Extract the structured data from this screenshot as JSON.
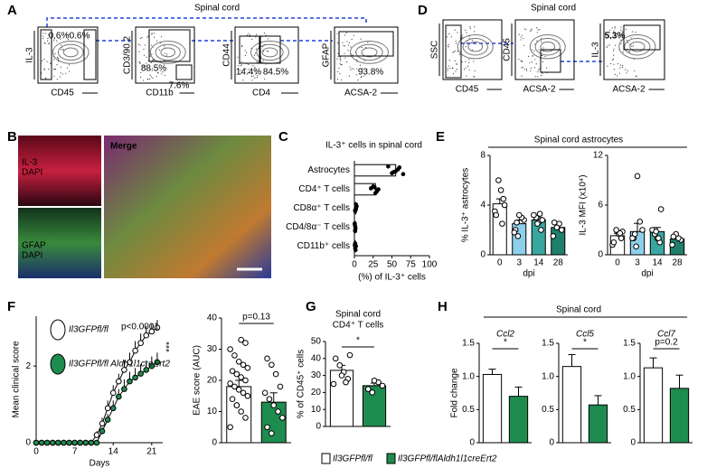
{
  "figure": {
    "panel_labels": [
      "A",
      "B",
      "C",
      "D",
      "E",
      "F",
      "G",
      "H"
    ],
    "A": {
      "title": "Spinal cord",
      "plots": [
        {
          "y_label": "IL-3",
          "x_label": "CD45",
          "gates": [
            "0.6%",
            "0.6%"
          ]
        },
        {
          "y_label": "CD3/90.2",
          "x_label": "CD11b",
          "gates": [
            "88.5%",
            "7.6%"
          ]
        },
        {
          "y_label": "CD44",
          "x_label": "CD4",
          "gates": [
            "14.4%",
            "84.5%"
          ]
        },
        {
          "y_label": "GFAP",
          "x_label": "ACSA-2",
          "gates": [
            "93.8%"
          ]
        }
      ]
    },
    "D": {
      "title": "Spinal cord",
      "plots": [
        {
          "y_label": "SSC",
          "x_label": "CD45",
          "gates": []
        },
        {
          "y_label": "CD45",
          "x_label": "ACSA-2",
          "gates": []
        },
        {
          "y_label": "IL-3",
          "x_label": "ACSA-2",
          "gates": [
            "5.3%"
          ]
        }
      ]
    },
    "B": {
      "top_labels": [
        "IL-3",
        "DAPI"
      ],
      "bottom_labels": [
        "GFAP",
        "DAPI"
      ],
      "merge_label": "Merge"
    },
    "E_title": "Spinal cord astrocytes",
    "H_title": "Spinal cord",
    "legend": [
      "Il3GFPfl/fl",
      "Il3GFPfl/flAldh1l1creErt2"
    ],
    "legend_colors": [
      "#ffffff",
      "#1e8c4e"
    ]
  },
  "chart_data": [
    {
      "type": "hbar",
      "title": "IL-3⁺ cells in spinal cord",
      "x_label": "(%) of IL-3⁺ cells",
      "categories": [
        "Astrocytes",
        "CD4⁺ T cells",
        "CD8α⁺ T cells",
        "CD4/8α⁻ T cells",
        "CD11b⁺ cells"
      ],
      "values": [
        55,
        28,
        2,
        1,
        1
      ],
      "errors": [
        4,
        3,
        1,
        0.5,
        0.5
      ],
      "points": [
        [
          45,
          50,
          55,
          58,
          60,
          65,
          52
        ],
        [
          22,
          25,
          28,
          30,
          32,
          27
        ],
        [
          1,
          2,
          3,
          2,
          1,
          2
        ],
        [
          0.5,
          1,
          1.5,
          1,
          0.5,
          1
        ],
        [
          0.5,
          1,
          1.5,
          1,
          2,
          1
        ]
      ],
      "color": "#ffffff",
      "xlim": [
        0,
        100
      ],
      "xticks": [
        0,
        25,
        50,
        75,
        100
      ]
    },
    {
      "type": "bar",
      "y_label": "% IL-3⁺ astrocytes",
      "x_label": "dpi",
      "categories": [
        "0",
        "3",
        "14",
        "28"
      ],
      "values": [
        4.1,
        2.5,
        2.8,
        2.2
      ],
      "errors": [
        0.4,
        0.3,
        0.2,
        0.2
      ],
      "colors": [
        "#ffffff",
        "#8ed0ea",
        "#3aa6a0",
        "#1f7f6a"
      ],
      "points": [
        [
          3.5,
          4.5,
          5.2,
          6.0,
          3.2,
          4.0,
          2.5
        ],
        [
          1.5,
          2.0,
          2.8,
          3.0,
          3.2,
          2.6,
          1.8
        ],
        [
          2.0,
          2.6,
          3.0,
          3.2,
          2.8,
          3.3,
          2.5
        ],
        [
          1.5,
          2.0,
          2.5,
          2.2,
          2.6
        ]
      ],
      "ylim": [
        0,
        8
      ],
      "yticks": [
        0,
        4,
        8
      ]
    },
    {
      "type": "bar",
      "y_label": "IL-3 MFI (x10⁴)",
      "x_label": "dpi",
      "categories": [
        "0",
        "3",
        "14",
        "28"
      ],
      "values": [
        2.3,
        2.8,
        2.8,
        1.9
      ],
      "errors": [
        0.3,
        1.0,
        0.5,
        0.2
      ],
      "colors": [
        "#ffffff",
        "#8ed0ea",
        "#3aa6a0",
        "#1f7f6a"
      ],
      "points": [
        [
          1.2,
          2.0,
          2.5,
          3.0,
          1.5,
          2.8,
          2.6
        ],
        [
          1.0,
          2.0,
          3.0,
          4.0,
          9.5,
          2.5,
          2.0
        ],
        [
          1.5,
          2.0,
          2.5,
          3.0,
          5.5,
          2.0,
          2.8
        ],
        [
          1.2,
          1.8,
          2.0,
          2.5,
          2.2
        ]
      ],
      "ylim": [
        0,
        12
      ],
      "yticks": [
        0,
        6,
        12
      ]
    },
    {
      "type": "line",
      "y_label": "Mean clinical score",
      "x_label": "Days",
      "annotations": [
        "p<0.0001",
        "***"
      ],
      "x": [
        0,
        1,
        2,
        3,
        4,
        5,
        6,
        7,
        8,
        9,
        10,
        11,
        12,
        13,
        14,
        15,
        16,
        17,
        18,
        19,
        20,
        21,
        22
      ],
      "series": [
        {
          "name": "Il3GFPfl/fl",
          "color": "#ffffff",
          "values": [
            0,
            0,
            0,
            0,
            0,
            0,
            0,
            0,
            0,
            0,
            0,
            0.2,
            0.5,
            0.9,
            1.3,
            1.6,
            1.9,
            2.1,
            2.4,
            2.6,
            2.8,
            2.9,
            3.0
          ],
          "errors": [
            0,
            0,
            0,
            0,
            0,
            0,
            0,
            0,
            0,
            0,
            0,
            0.1,
            0.15,
            0.2,
            0.2,
            0.2,
            0.25,
            0.25,
            0.25,
            0.25,
            0.25,
            0.2,
            0.2
          ]
        },
        {
          "name": "Il3GFPfl/fl Aldh1l1creErt2",
          "color": "#1e8c4e",
          "values": [
            0,
            0,
            0,
            0,
            0,
            0,
            0,
            0,
            0,
            0,
            0,
            0,
            0.3,
            0.6,
            0.9,
            1.2,
            1.4,
            1.6,
            1.7,
            1.8,
            1.9,
            2.0,
            2.1
          ],
          "errors": [
            0,
            0,
            0,
            0,
            0,
            0,
            0,
            0,
            0,
            0,
            0,
            0,
            0.1,
            0.15,
            0.2,
            0.2,
            0.25,
            0.25,
            0.25,
            0.25,
            0.25,
            0.25,
            0.25
          ]
        }
      ],
      "xlim": [
        0,
        23
      ],
      "xticks": [
        0,
        7,
        14,
        21
      ],
      "ylim": [
        0,
        3.3
      ],
      "yticks": [
        0,
        2
      ]
    },
    {
      "type": "bar",
      "y_label": "EAE score (AUC)",
      "annotations": [
        "p=0.13"
      ],
      "categories": [
        null,
        null
      ],
      "values": [
        18,
        13
      ],
      "errors": [
        2,
        3
      ],
      "colors": [
        "#ffffff",
        "#1e8c4e"
      ],
      "points": [
        [
          5,
          8,
          10,
          12,
          14,
          15,
          16,
          17,
          18,
          19,
          20,
          21,
          22,
          23,
          24,
          25,
          26,
          28,
          30,
          32,
          33,
          12
        ],
        [
          3,
          5,
          8,
          10,
          12,
          14,
          16,
          18,
          22,
          25,
          27
        ]
      ],
      "ylim": [
        0,
        40
      ],
      "yticks": [
        0,
        10,
        20,
        30,
        40
      ]
    },
    {
      "type": "bar",
      "title": "Spinal cord",
      "subtitle": "CD4⁺ T cells",
      "y_label": "% of CD45⁺ cells",
      "annotations": [
        "*"
      ],
      "categories": [
        null,
        null
      ],
      "values": [
        33,
        24
      ],
      "errors": [
        3,
        1.5
      ],
      "colors": [
        "#ffffff",
        "#1e8c4e"
      ],
      "points": [
        [
          25,
          28,
          32,
          36,
          40,
          42,
          26,
          30
        ],
        [
          20,
          22,
          24,
          26,
          27
        ]
      ],
      "ylim": [
        0,
        50
      ],
      "yticks": [
        0,
        10,
        20,
        30,
        40,
        50
      ]
    },
    {
      "type": "bar",
      "title": "Ccl2",
      "y_label": "Fold change",
      "annotations": [
        "*"
      ],
      "categories": [
        null,
        null
      ],
      "values": [
        1.03,
        0.7
      ],
      "errors": [
        0.08,
        0.14
      ],
      "colors": [
        "#ffffff",
        "#1e8c4e"
      ],
      "ylim": [
        0,
        1.5
      ],
      "yticks": [
        0,
        0.5,
        {
          "value": 1,
          "label": "1.0"
        },
        1.5
      ]
    },
    {
      "type": "bar",
      "title": "Ccl5",
      "annotations": [
        "*"
      ],
      "categories": [
        null,
        null
      ],
      "values": [
        1.15,
        0.57
      ],
      "errors": [
        0.18,
        0.14
      ],
      "colors": [
        "#ffffff",
        "#1e8c4e"
      ],
      "ylim": [
        0,
        1.5
      ],
      "yticks": [
        0,
        0.5,
        {
          "value": 1,
          "label": "1.0"
        },
        1.5
      ]
    },
    {
      "type": "bar",
      "title": "Ccl7",
      "annotations": [
        "p=0.2"
      ],
      "categories": [
        null,
        null
      ],
      "values": [
        1.13,
        0.82
      ],
      "errors": [
        0.15,
        0.2
      ],
      "colors": [
        "#ffffff",
        "#1e8c4e"
      ],
      "ylim": [
        0,
        1.5
      ],
      "yticks": [
        0,
        0.5,
        {
          "value": 1,
          "label": "1.0"
        },
        1.5
      ]
    }
  ]
}
